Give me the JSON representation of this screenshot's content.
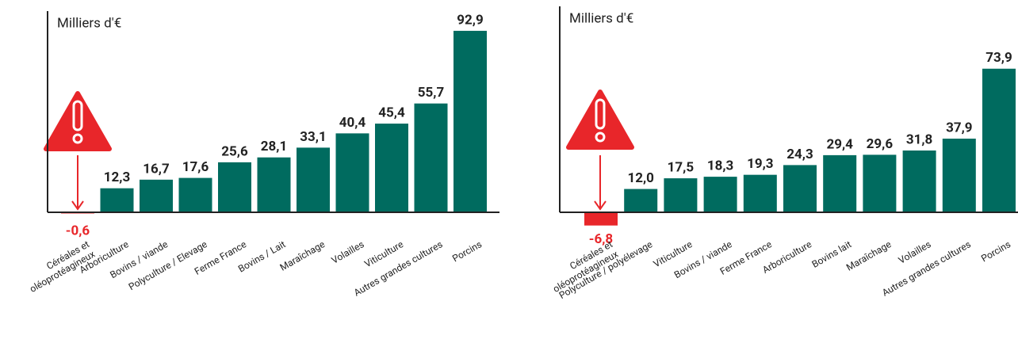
{
  "chart_data": [
    {
      "type": "bar",
      "y_label": "Milliers d'€",
      "categories": [
        "Céréales et\noléoprotéagineux",
        "Arboriculture",
        "Bovins / viande",
        "Polyculture / Elevage",
        "Ferme France",
        "Bovins / Lait",
        "Maraîchage",
        "Volailles",
        "Viticulture",
        "Autres grandes cultures",
        "Porcins"
      ],
      "values": [
        -0.6,
        12.3,
        16.7,
        17.6,
        25.6,
        28.1,
        33.1,
        40.4,
        45.4,
        55.7,
        92.9
      ],
      "value_labels": [
        "-0,6",
        "12,3",
        "16,7",
        "17,6",
        "25,6",
        "28,1",
        "33,1",
        "40,4",
        "45,4",
        "55,7",
        "92,9"
      ],
      "color": "#006b5f",
      "negative_color": "#e8262a",
      "ylim": [
        0,
        103
      ]
    },
    {
      "type": "bar",
      "y_label": "Milliers d'€",
      "categories": [
        "Céréales et\noléoprotéagineux",
        "Polyculture / polyélevage",
        "Viticulture",
        "Bovins / viande",
        "Ferme France",
        "Arboriculture",
        "Bovins lait",
        "Maraîchage",
        "Volailles",
        "Autres grandes cultures",
        "Porcins"
      ],
      "values": [
        -6.8,
        12.0,
        17.5,
        18.3,
        19.3,
        24.3,
        29.4,
        29.6,
        31.8,
        37.9,
        73.9
      ],
      "value_labels": [
        "-6,8",
        "12,0",
        "17,5",
        "18,3",
        "19,3",
        "24,3",
        "29,4",
        "29,6",
        "31,8",
        "37,9",
        "73,9"
      ],
      "color": "#006b5f",
      "negative_color": "#e8262a",
      "ylim": [
        0,
        106
      ]
    }
  ]
}
